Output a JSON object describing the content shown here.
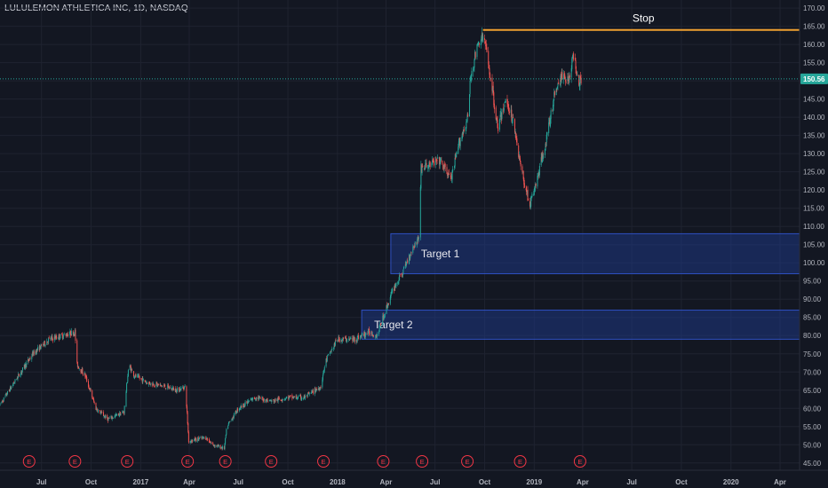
{
  "header": {
    "symbol_title": "LULULEMON ATHLETICA INC, 1D, NASDAQ"
  },
  "colors": {
    "background": "#131722",
    "grid": "#1f2330",
    "up_candle": "#26a69a",
    "down_candle": "#ef5350",
    "stop_line": "#f0a030",
    "zone_fill": "#1e3a8a",
    "zone_border": "#2e4fc0",
    "price_badge": "#26a69a",
    "earnings_marker": "#f23645"
  },
  "chart_data": {
    "type": "candlestick",
    "symbol": "LULULEMON ATHLETICA INC",
    "interval": "1D",
    "exchange": "NASDAQ",
    "ylim": [
      43,
      171
    ],
    "y_ticks": [
      45,
      50,
      55,
      60,
      65,
      70,
      75,
      80,
      85,
      90,
      95,
      100,
      105,
      110,
      115,
      120,
      125,
      130,
      135,
      140,
      145,
      150,
      155,
      160,
      165,
      170
    ],
    "y_tick_labels": [
      "45.00",
      "50.00",
      "55.00",
      "60.00",
      "65.00",
      "70.00",
      "75.00",
      "80.00",
      "85.00",
      "90.00",
      "95.00",
      "100.00",
      "105.00",
      "110.00",
      "115.00",
      "120.00",
      "125.00",
      "130.00",
      "135.00",
      "140.00",
      "145.00",
      "150.00",
      "155.00",
      "160.00",
      "165.00",
      "170.00"
    ],
    "x_ticks": [
      {
        "label": "Jul",
        "date": "2016-07-01"
      },
      {
        "label": "Oct",
        "date": "2016-10-01"
      },
      {
        "label": "2017",
        "date": "2017-01-01"
      },
      {
        "label": "Apr",
        "date": "2017-04-01"
      },
      {
        "label": "Jul",
        "date": "2017-07-01"
      },
      {
        "label": "Oct",
        "date": "2017-10-01"
      },
      {
        "label": "2018",
        "date": "2018-01-01"
      },
      {
        "label": "Apr",
        "date": "2018-04-01"
      },
      {
        "label": "Jul",
        "date": "2018-07-01"
      },
      {
        "label": "Oct",
        "date": "2018-10-01"
      },
      {
        "label": "2019",
        "date": "2019-01-01"
      },
      {
        "label": "Apr",
        "date": "2019-04-01"
      },
      {
        "label": "Jul",
        "date": "2019-07-01"
      },
      {
        "label": "Oct",
        "date": "2019-10-01"
      },
      {
        "label": "2020",
        "date": "2020-01-01"
      },
      {
        "label": "Apr",
        "date": "2020-04-01"
      }
    ],
    "price_path": [
      [
        "2016-04-15",
        61
      ],
      [
        "2016-05-15",
        68
      ],
      [
        "2016-06-15",
        75
      ],
      [
        "2016-07-15",
        79
      ],
      [
        "2016-08-10",
        80
      ],
      [
        "2016-09-01",
        81
      ],
      [
        "2016-09-05",
        72
      ],
      [
        "2016-09-20",
        69
      ],
      [
        "2016-10-10",
        60
      ],
      [
        "2016-11-01",
        57
      ],
      [
        "2016-12-01",
        59
      ],
      [
        "2016-12-10",
        72
      ],
      [
        "2016-12-20",
        69
      ],
      [
        "2017-01-15",
        67
      ],
      [
        "2017-02-15",
        66
      ],
      [
        "2017-03-10",
        65
      ],
      [
        "2017-03-25",
        66
      ],
      [
        "2017-03-31",
        51
      ],
      [
        "2017-05-01",
        52
      ],
      [
        "2017-05-15",
        50
      ],
      [
        "2017-06-05",
        49
      ],
      [
        "2017-06-10",
        55
      ],
      [
        "2017-07-01",
        60
      ],
      [
        "2017-08-01",
        63
      ],
      [
        "2017-09-01",
        62
      ],
      [
        "2017-10-01",
        63
      ],
      [
        "2017-11-01",
        63
      ],
      [
        "2017-12-01",
        66
      ],
      [
        "2017-12-10",
        73
      ],
      [
        "2018-01-01",
        79
      ],
      [
        "2018-02-01",
        79
      ],
      [
        "2018-03-01",
        81
      ],
      [
        "2018-03-15",
        80
      ],
      [
        "2018-03-29",
        86
      ],
      [
        "2018-04-15",
        93
      ],
      [
        "2018-05-01",
        97
      ],
      [
        "2018-05-20",
        104
      ],
      [
        "2018-06-01",
        107
      ],
      [
        "2018-06-05",
        126
      ],
      [
        "2018-06-20",
        127
      ],
      [
        "2018-07-10",
        128
      ],
      [
        "2018-07-31",
        123
      ],
      [
        "2018-08-15",
        133
      ],
      [
        "2018-08-31",
        140
      ],
      [
        "2018-09-05",
        151
      ],
      [
        "2018-09-15",
        158
      ],
      [
        "2018-09-25",
        162
      ],
      [
        "2018-10-01",
        161
      ],
      [
        "2018-10-15",
        148
      ],
      [
        "2018-10-25",
        137
      ],
      [
        "2018-11-10",
        145
      ],
      [
        "2018-11-25",
        138
      ],
      [
        "2018-12-05",
        128
      ],
      [
        "2018-12-15",
        121
      ],
      [
        "2018-12-24",
        116
      ],
      [
        "2019-01-05",
        122
      ],
      [
        "2019-01-25",
        135
      ],
      [
        "2019-02-10",
        148
      ],
      [
        "2019-02-25",
        152
      ],
      [
        "2019-03-05",
        150
      ],
      [
        "2019-03-15",
        157
      ],
      [
        "2019-03-25",
        150
      ],
      [
        "2019-03-31",
        151
      ]
    ],
    "earnings_dates": [
      "2016-06-08",
      "2016-09-01",
      "2016-12-07",
      "2017-03-29",
      "2017-06-07",
      "2017-08-31",
      "2017-12-06",
      "2018-03-27",
      "2018-06-07",
      "2018-08-30",
      "2018-12-06",
      "2019-03-27"
    ],
    "earnings_marker_label": "E",
    "current_price": 150.56,
    "current_price_label": "150.56",
    "stop": {
      "price": 164,
      "label": "Stop",
      "start_date": "2018-09-28"
    },
    "zones": [
      {
        "label": "Target 1",
        "low": 97,
        "high": 108,
        "start_date": "2018-04-10"
      },
      {
        "label": "Target 2",
        "low": 79,
        "high": 87,
        "start_date": "2018-02-15"
      }
    ]
  }
}
